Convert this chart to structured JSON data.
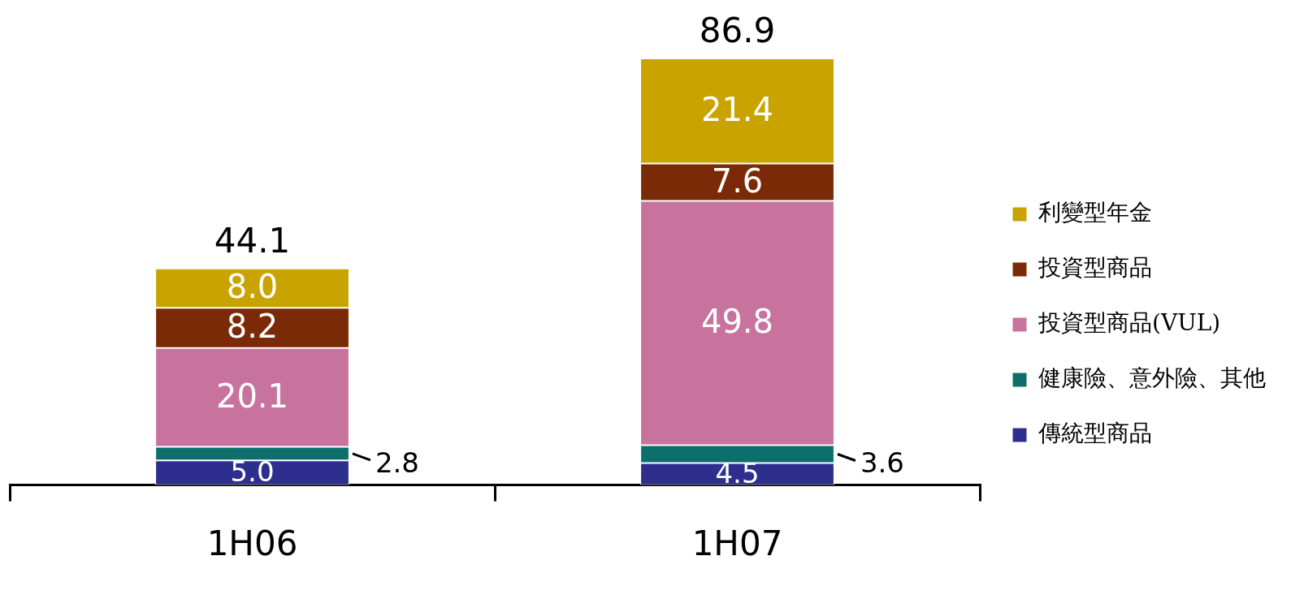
{
  "chart_data": {
    "type": "bar",
    "stacked": true,
    "categories": [
      "1H06",
      "1H07"
    ],
    "series": [
      {
        "name": "傳統型商品",
        "color": "#2e2e8e",
        "values": [
          5.0,
          4.5
        ],
        "value_labels": [
          "5.0",
          "4.5"
        ]
      },
      {
        "name": "健康險、意外險、其他",
        "color": "#0c6f6b",
        "values": [
          2.8,
          3.6
        ],
        "value_labels": [
          "2.8",
          "3.6"
        ]
      },
      {
        "name": "投資型商品(VUL)",
        "color": "#c8739d",
        "values": [
          20.1,
          49.8
        ],
        "value_labels": [
          "20.1",
          "49.8"
        ]
      },
      {
        "name": "投資型商品",
        "color": "#7a2a06",
        "values": [
          8.2,
          7.6
        ],
        "value_labels": [
          "8.2",
          "7.6"
        ]
      },
      {
        "name": "利變型年金",
        "color": "#c9a300",
        "values": [
          8.0,
          21.4
        ],
        "value_labels": [
          "8.0",
          "21.4"
        ]
      }
    ],
    "totals": [
      "44.1",
      "86.9"
    ],
    "legend": "right",
    "grid": false
  }
}
